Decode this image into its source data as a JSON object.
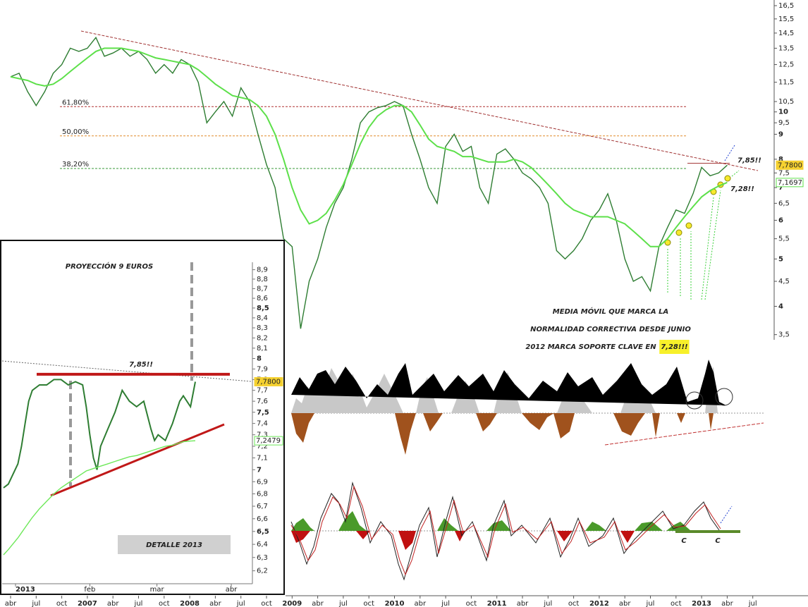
{
  "chart_data": [
    {
      "type": "line",
      "log_scale": true,
      "categories": [
        "abr",
        null,
        null,
        "jul",
        null,
        null,
        "oct",
        null,
        null,
        "2007",
        null,
        null,
        "abr",
        null,
        null,
        "jul",
        null,
        null,
        "oct",
        null,
        null,
        "2008",
        null,
        null,
        "abr",
        null,
        null,
        "jul",
        null,
        null,
        "oct",
        null,
        null,
        "2009",
        null,
        null,
        "abr",
        null,
        null,
        "jul",
        null,
        null,
        "oct",
        null,
        null,
        "2010",
        null,
        null,
        "abr",
        null,
        null,
        "jul",
        null,
        null,
        "oct",
        null,
        null,
        "2011",
        null,
        null,
        "abr",
        null,
        null,
        "jul",
        null,
        null,
        "oct",
        null,
        null,
        "2012",
        null,
        null,
        "abr",
        null,
        null,
        "jul",
        null,
        null,
        "oct",
        null,
        null,
        "2013",
        null,
        null,
        "abr",
        null,
        null,
        "jul"
      ],
      "series": [
        {
          "color": "#2e7d32",
          "values": [
            11.8,
            12.0,
            11.0,
            10.3,
            11.0,
            12.0,
            12.5,
            13.5,
            13.3,
            13.5,
            14.2,
            13.0,
            13.2,
            13.5,
            13.0,
            13.3,
            12.8,
            12.0,
            12.5,
            12.0,
            12.8,
            12.5,
            11.5,
            9.5,
            10.0,
            10.5,
            9.8,
            11.2,
            10.5,
            9.0,
            7.8,
            7.0,
            5.5,
            5.3,
            3.6,
            4.5,
            5.0,
            5.8,
            6.5,
            7.0,
            8.0,
            9.5,
            10.0,
            10.2,
            10.3,
            10.5,
            10.3,
            9.0,
            8.0,
            7.0,
            6.5,
            8.5,
            9.0,
            8.3,
            8.5,
            7.0,
            6.5,
            8.2,
            8.4,
            8.0,
            7.5,
            7.3,
            7.0,
            6.5,
            5.2,
            5.0,
            5.2,
            5.5,
            6.0,
            6.3,
            6.8,
            6.0,
            5.0,
            4.5,
            4.6,
            4.3,
            5.3,
            5.8,
            6.3,
            6.2,
            6.8,
            7.7,
            7.4,
            7.5,
            7.78,
            null,
            null,
            null
          ]
        },
        {
          "color": "#5de04a",
          "values": [
            11.8,
            11.7,
            11.6,
            11.4,
            11.3,
            11.4,
            11.7,
            12.1,
            12.5,
            12.9,
            13.3,
            13.5,
            13.5,
            13.5,
            13.4,
            13.3,
            13.1,
            12.9,
            12.8,
            12.7,
            12.6,
            12.5,
            12.2,
            11.8,
            11.4,
            11.1,
            10.8,
            10.7,
            10.6,
            10.3,
            9.8,
            9.0,
            8.0,
            7.0,
            6.3,
            5.9,
            6.0,
            6.2,
            6.6,
            7.1,
            7.8,
            8.6,
            9.3,
            9.8,
            10.1,
            10.3,
            10.3,
            10.0,
            9.4,
            8.8,
            8.5,
            8.4,
            8.3,
            8.1,
            8.1,
            8.0,
            7.9,
            7.9,
            7.9,
            8.0,
            7.9,
            7.7,
            7.4,
            7.1,
            6.8,
            6.5,
            6.3,
            6.2,
            6.1,
            6.1,
            6.1,
            6.0,
            5.9,
            5.7,
            5.5,
            5.3,
            5.3,
            5.5,
            5.8,
            6.1,
            6.4,
            6.7,
            6.9,
            7.05,
            7.17,
            null,
            null,
            null
          ]
        }
      ],
      "ylim": [
        3.45,
        16.8
      ],
      "yticks": [
        {
          "value": 3.5,
          "label": "3,5"
        },
        4,
        {
          "value": 4.5,
          "label": "4,5"
        },
        5,
        {
          "value": 5.5,
          "label": "5,5"
        },
        6,
        {
          "value": 6.5,
          "label": "6,5"
        },
        7,
        {
          "value": 7.5,
          "label": "7,5"
        },
        8,
        9,
        {
          "value": 9.5,
          "label": "9,5"
        },
        10,
        {
          "value": 10.5,
          "label": "10,5"
        },
        {
          "value": 11.5,
          "label": "11,5"
        },
        {
          "value": 12.5,
          "label": "12,5"
        },
        {
          "value": 13.5,
          "label": "13,5"
        },
        {
          "value": 14.5,
          "label": "14,5"
        },
        {
          "value": 15.5,
          "label": "15,5"
        },
        {
          "value": 16.5,
          "label": "16,5"
        }
      ],
      "last_labels": [
        {
          "value": 7.78,
          "label": "7,7800",
          "color": "#f5d130"
        },
        {
          "value": 7.1697,
          "label": "7,1697",
          "color": "#5de04a"
        }
      ],
      "fib_levels": [
        {
          "value": 10.25,
          "label": "61,80%",
          "color": "#b03030"
        },
        {
          "value": 8.93,
          "label": "50,00%",
          "color": "#e08a2a"
        },
        {
          "value": 7.66,
          "label": "38,20%",
          "color": "#3a9a3a"
        }
      ],
      "resistance": {
        "value": 7.85,
        "label": "7,85!!"
      },
      "support_label": "7,28!!",
      "note_lines": [
        "MEDIA MÓVIL QUE MARCA LA",
        "NORMALIDAD CORRECTIVA DESDE JUNIO",
        "2012 MARCA SOPORTE CLAVE EN"
      ],
      "note_highlight": "7,28!!!",
      "oscillator_labels": [
        "C",
        "C"
      ]
    },
    {
      "type": "line",
      "log_scale": true,
      "title": "PROYECCIÓN 9 EUROS",
      "x": [
        -4,
        -2,
        2,
        3.5,
        5,
        6.5,
        8,
        11,
        14,
        17,
        20,
        23,
        26,
        29,
        30.5,
        32,
        33.5,
        35,
        36.5,
        39.5,
        42.5,
        45.5,
        48.5,
        51.5,
        54.5,
        57.5,
        59,
        60.5,
        63.5,
        66.5,
        69.5,
        71,
        74,
        76
      ],
      "series": [
        {
          "color": "#2e7d32",
          "values": [
            6.85,
            6.88,
            7.05,
            7.2,
            7.4,
            7.6,
            7.7,
            7.75,
            7.75,
            7.8,
            7.8,
            7.75,
            7.78,
            7.75,
            7.55,
            7.3,
            7.1,
            7.0,
            7.2,
            7.35,
            7.5,
            7.7,
            7.6,
            7.55,
            7.6,
            7.35,
            7.25,
            7.3,
            7.25,
            7.4,
            7.6,
            7.65,
            7.55,
            7.78
          ]
        },
        {
          "color": "#6ee85a",
          "values": [
            6.32,
            6.36,
            6.45,
            6.49,
            6.53,
            6.57,
            6.61,
            6.68,
            6.74,
            6.8,
            6.85,
            6.89,
            6.93,
            6.97,
            6.99,
            7.0,
            7.01,
            7.02,
            7.03,
            7.05,
            7.07,
            7.09,
            7.11,
            7.12,
            7.14,
            7.16,
            7.17,
            7.18,
            7.2,
            7.21,
            7.23,
            7.24,
            7.245,
            7.2479
          ]
        }
      ],
      "xlim": [
        -5,
        100
      ],
      "xticks": [
        {
          "value": 1,
          "label": "2013"
        },
        {
          "value": 32,
          "label": "feb"
        },
        {
          "value": 60,
          "label": "mar"
        },
        {
          "value": 91,
          "label": "abr"
        }
      ],
      "ylim": [
        6.12,
        8.98
      ],
      "yticks": [
        {
          "value": 6.2,
          "label": "6,2"
        },
        {
          "value": 6.3,
          "label": "6,3"
        },
        {
          "value": 6.4,
          "label": "6,4"
        },
        {
          "value": 6.5,
          "label": "6,5"
        },
        {
          "value": 6.6,
          "label": "6,6"
        },
        {
          "value": 6.7,
          "label": "6,7"
        },
        {
          "value": 6.8,
          "label": "6,8"
        },
        {
          "value": 6.9,
          "label": "6,9"
        },
        7,
        {
          "value": 7.1,
          "label": "7,1"
        },
        {
          "value": 7.2,
          "label": "7,2"
        },
        {
          "value": 7.3,
          "label": "7,3"
        },
        {
          "value": 7.4,
          "label": "7,4"
        },
        {
          "value": 7.5,
          "label": "7,5"
        },
        {
          "value": 7.6,
          "label": "7,6"
        },
        {
          "value": 7.7,
          "label": "7,7"
        },
        {
          "value": 7.8,
          "label": "7,8"
        },
        {
          "value": 7.9,
          "label": "7,9"
        },
        8,
        {
          "value": 8.1,
          "label": "8,1"
        },
        {
          "value": 8.2,
          "label": "8,2"
        },
        {
          "value": 8.3,
          "label": "8,3"
        },
        {
          "value": 8.4,
          "label": "8,4"
        },
        {
          "value": 8.5,
          "label": "8,5"
        },
        {
          "value": 8.6,
          "label": "8,6"
        },
        {
          "value": 8.7,
          "label": "8,7"
        },
        {
          "value": 8.8,
          "label": "8,8"
        },
        {
          "value": 8.9,
          "label": "8,9"
        }
      ],
      "last_labels": [
        {
          "value": 7.78,
          "label": "7,7800",
          "color": "#f5d130"
        },
        {
          "value": 7.2479,
          "label": "7,2479",
          "color": "#6ee85a"
        }
      ],
      "resistance": {
        "value": 7.85,
        "label": "7,85!!"
      },
      "footer": "DETALLE 2013"
    }
  ]
}
